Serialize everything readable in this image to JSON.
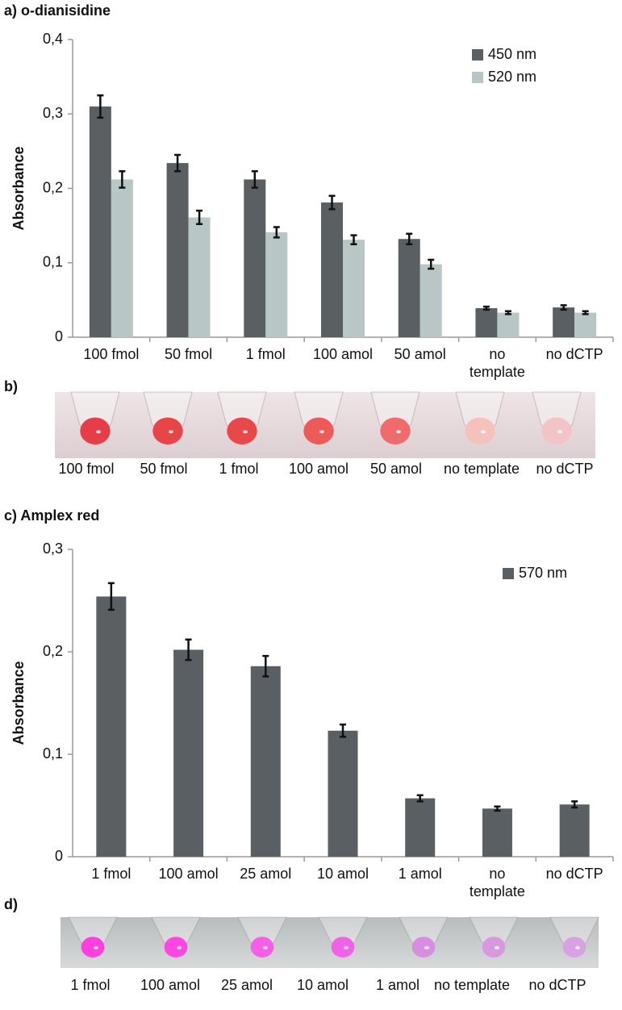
{
  "chart_data": [
    {
      "type": "bar",
      "title": "a) o-dianisidine",
      "ylabel": "Absorbance",
      "categories": [
        "100 fmol",
        "50 fmol",
        "1 fmol",
        "100 amol",
        "50 amol",
        "no template",
        "no dCTP"
      ],
      "series": [
        {
          "name": "450 nm",
          "color": "#595f63",
          "values": [
            0.31,
            0.234,
            0.212,
            0.181,
            0.132,
            0.039,
            0.04
          ],
          "errors": [
            0.015,
            0.011,
            0.011,
            0.009,
            0.007,
            0.002,
            0.003
          ]
        },
        {
          "name": "520 nm",
          "color": "#b9c6c6",
          "values": [
            0.212,
            0.161,
            0.141,
            0.131,
            0.098,
            0.033,
            0.033
          ],
          "errors": [
            0.011,
            0.009,
            0.007,
            0.006,
            0.006,
            0.002,
            0.002
          ]
        }
      ],
      "ylim": [
        0,
        0.4
      ],
      "yticks": [
        0,
        {
          "value": 0.1,
          "label": "0,1"
        },
        {
          "value": 0.2,
          "label": "0,2"
        },
        {
          "value": 0.3,
          "label": "0,3"
        },
        {
          "value": 0.4,
          "label": "0,4"
        }
      ],
      "grid": false,
      "legend": "upper right"
    },
    {
      "type": "bar",
      "title": "c) Amplex red",
      "ylabel": "Absorbance",
      "categories": [
        "1 fmol",
        "100 amol",
        "25 amol",
        "10 amol",
        "1 amol",
        "no template",
        "no dCTP"
      ],
      "series": [
        {
          "name": "570 nm",
          "color": "#595f63",
          "values": [
            0.254,
            0.202,
            0.186,
            0.123,
            0.057,
            0.047,
            0.051
          ],
          "errors": [
            0.013,
            0.01,
            0.01,
            0.006,
            0.003,
            0.002,
            0.003
          ]
        }
      ],
      "ylim": [
        0,
        0.3
      ],
      "yticks": [
        0,
        {
          "value": 0.1,
          "label": "0,1"
        },
        {
          "value": 0.2,
          "label": "0,2"
        },
        {
          "value": 0.3,
          "label": "0,3"
        }
      ],
      "grid": false,
      "legend": "upper right"
    }
  ],
  "photos": [
    {
      "label": "b)",
      "captions": [
        "100 fmol",
        "50 fmol",
        "1 fmol",
        "100 amol",
        "50 amol",
        "no template",
        "no dCTP"
      ]
    },
    {
      "label": "d)",
      "captions": [
        "1 fmol",
        "100 amol",
        "25 amol",
        "10 amol",
        "1 amol",
        "no template",
        "no dCTP"
      ]
    }
  ]
}
